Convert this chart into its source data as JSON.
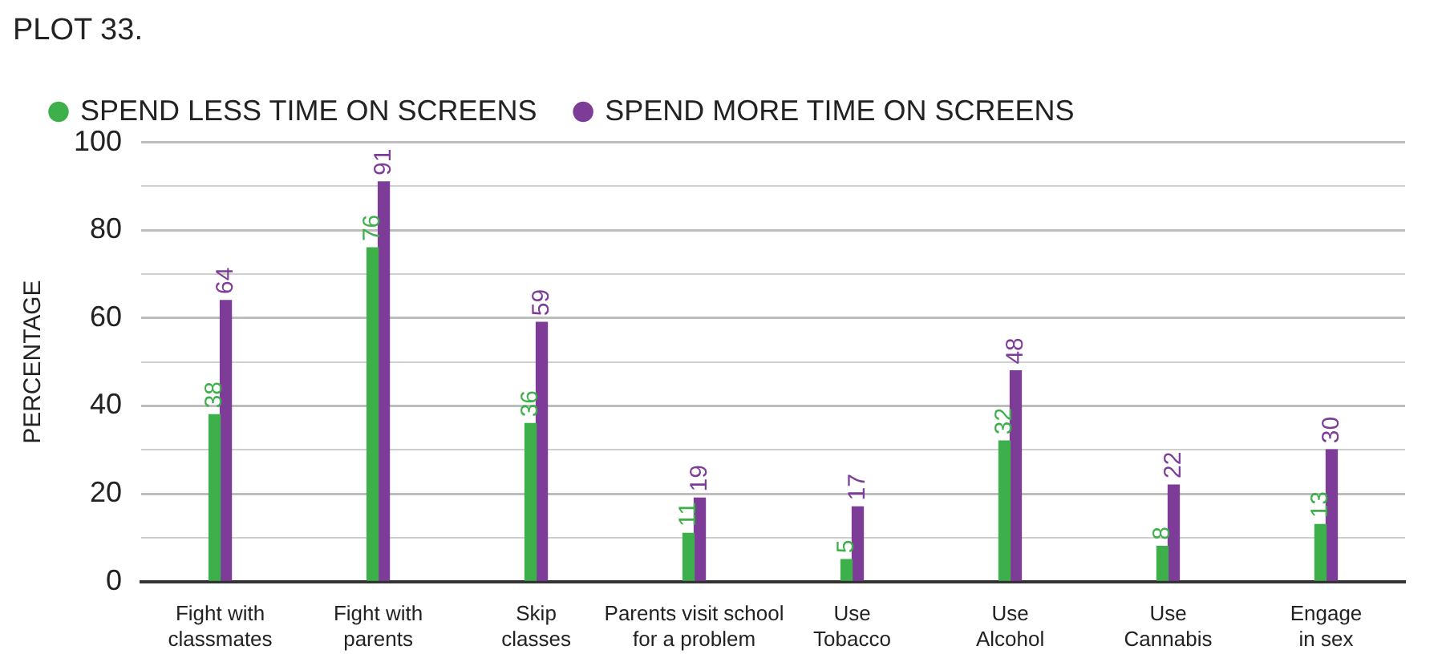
{
  "chart_data": {
    "type": "bar",
    "title": "PLOT 33.",
    "ylabel": "PERCENTAGE",
    "categories": [
      "Fight with\nclassmates",
      "Fight with\nparents",
      "Skip\nclasses",
      "Parents visit school\nfor a problem",
      "Use\nTobacco",
      "Use\nAlcohol",
      "Use\nCannabis",
      "Engage\nin sex"
    ],
    "series": [
      {
        "name": "SPEND LESS TIME ON SCREENS",
        "color": "#3db04b",
        "values": [
          38,
          76,
          36,
          11,
          5,
          32,
          8,
          13
        ]
      },
      {
        "name": "SPEND MORE TIME ON SCREENS",
        "color": "#7d3c98",
        "values": [
          64,
          91,
          59,
          19,
          17,
          48,
          22,
          30
        ]
      }
    ],
    "ylim": [
      0,
      100
    ],
    "yticks": [
      0,
      {
        "value": 10,
        "label": null
      },
      20,
      {
        "value": 30,
        "label": null
      },
      40,
      {
        "value": 50,
        "label": null
      },
      60,
      {
        "value": 70,
        "label": null
      },
      80,
      {
        "value": 90,
        "label": null
      },
      100
    ],
    "grid": "y",
    "legend": "top left",
    "marker": "circle",
    "data_labels": true
  }
}
